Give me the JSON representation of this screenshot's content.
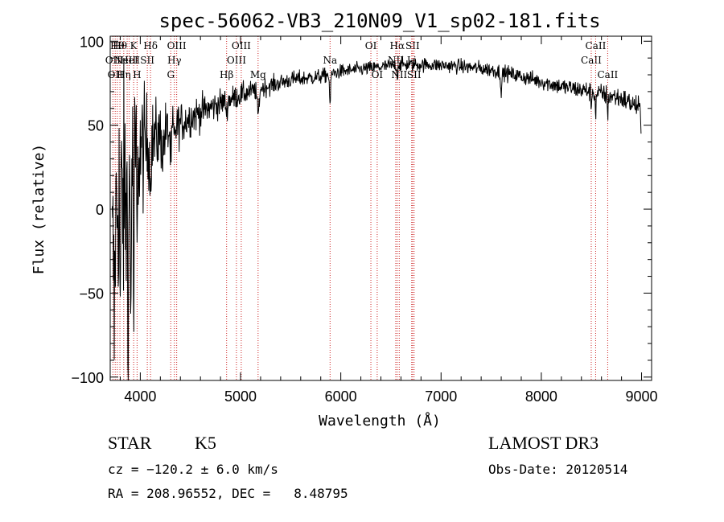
{
  "chart_data": {
    "type": "line",
    "title": "spec-56062-VB3_210N09_V1_sp02-181.fits",
    "xlabel": "Wavelength (Å)",
    "ylabel": "Flux (relative)",
    "xlim": [
      3700,
      9100
    ],
    "ylim": [
      -102,
      103
    ],
    "xticks": [
      4000,
      5000,
      6000,
      7000,
      8000,
      9000
    ],
    "yticks": [
      -100,
      -50,
      0,
      50,
      100
    ],
    "xtick_labels": [
      "4000",
      "5000",
      "6000",
      "7000",
      "8000",
      "9000"
    ],
    "ytick_labels": [
      "−100",
      "−50",
      "0",
      "50",
      "100"
    ],
    "continuum": [
      [
        3720,
        -30
      ],
      [
        3780,
        10
      ],
      [
        3830,
        5
      ],
      [
        3870,
        0
      ],
      [
        3900,
        20
      ],
      [
        3950,
        30
      ],
      [
        4000,
        35
      ],
      [
        4100,
        40
      ],
      [
        4200,
        44
      ],
      [
        4300,
        47
      ],
      [
        4500,
        55
      ],
      [
        4800,
        63
      ],
      [
        5000,
        68
      ],
      [
        5200,
        72
      ],
      [
        5500,
        77
      ],
      [
        5800,
        79
      ],
      [
        6000,
        82
      ],
      [
        6300,
        84
      ],
      [
        6600,
        86
      ],
      [
        6900,
        86
      ],
      [
        7200,
        85
      ],
      [
        7500,
        83
      ],
      [
        7800,
        79
      ],
      [
        8200,
        73
      ],
      [
        8500,
        70
      ],
      [
        8800,
        66
      ],
      [
        8990,
        60
      ]
    ],
    "noise_profile": [
      [
        3720,
        45
      ],
      [
        3850,
        55
      ],
      [
        3950,
        35
      ],
      [
        4100,
        18
      ],
      [
        4400,
        9
      ],
      [
        4800,
        6
      ],
      [
        5200,
        4
      ],
      [
        6000,
        3
      ],
      [
        7000,
        3
      ],
      [
        8000,
        3.5
      ],
      [
        9000,
        5
      ]
    ],
    "dips": [
      {
        "x": 3740,
        "depth": 55,
        "w": 6
      },
      {
        "x": 3800,
        "depth": 70,
        "w": 6
      },
      {
        "x": 3880,
        "depth": 110,
        "w": 5
      },
      {
        "x": 3905,
        "depth": 90,
        "w": 5
      },
      {
        "x": 3935,
        "depth": 95,
        "w": 5
      },
      {
        "x": 3970,
        "depth": 70,
        "w": 5
      },
      {
        "x": 4101,
        "depth": 30,
        "w": 6
      },
      {
        "x": 4226,
        "depth": 15,
        "w": 8
      },
      {
        "x": 4305,
        "depth": 18,
        "w": 10
      },
      {
        "x": 4340,
        "depth": 12,
        "w": 6
      },
      {
        "x": 4861,
        "depth": 8,
        "w": 8
      },
      {
        "x": 5175,
        "depth": 15,
        "w": 14
      },
      {
        "x": 5893,
        "depth": 18,
        "w": 8
      },
      {
        "x": 6563,
        "depth": 8,
        "w": 6
      },
      {
        "x": 7600,
        "depth": 10,
        "w": 10
      },
      {
        "x": 8498,
        "depth": 8,
        "w": 6
      },
      {
        "x": 8542,
        "depth": 14,
        "w": 6
      },
      {
        "x": 8662,
        "depth": 12,
        "w": 6
      }
    ],
    "drop_end": [
      8990,
      45
    ],
    "line_markers": [
      {
        "x": 3727,
        "label": "OII",
        "row": 1
      },
      {
        "x": 3750,
        "label": "OII",
        "row": 2
      },
      {
        "x": 3771,
        "label": "Hθ",
        "row": 0
      },
      {
        "x": 3797,
        "label": "Hθ",
        "row": 0
      },
      {
        "x": 3835,
        "label": "Hη",
        "row": 2
      },
      {
        "x": 3869,
        "label": "NeIII",
        "row": 1
      },
      {
        "x": 3889,
        "label": "HeI",
        "row": 1
      },
      {
        "x": 3934,
        "label": "K",
        "row": 0
      },
      {
        "x": 3968,
        "label": "H",
        "row": 2
      },
      {
        "x": 4070,
        "label": "SII",
        "row": 1
      },
      {
        "x": 4102,
        "label": "Hδ",
        "row": 0
      },
      {
        "x": 4304,
        "label": "G",
        "row": 2
      },
      {
        "x": 4340,
        "label": "Hγ",
        "row": 1
      },
      {
        "x": 4363,
        "label": "OIII",
        "row": 0
      },
      {
        "x": 4861,
        "label": "Hβ",
        "row": 2
      },
      {
        "x": 4959,
        "label": "OIII",
        "row": 1
      },
      {
        "x": 5007,
        "label": "OIII",
        "row": 0
      },
      {
        "x": 5175,
        "label": "Mg",
        "row": 2
      },
      {
        "x": 5893,
        "label": "Na",
        "row": 1
      },
      {
        "x": 6300,
        "label": "OI",
        "row": 0
      },
      {
        "x": 6363,
        "label": "OI",
        "row": 2
      },
      {
        "x": 6548,
        "label": "NII",
        "row": 1
      },
      {
        "x": 6563,
        "label": "Hα",
        "row": 0
      },
      {
        "x": 6583,
        "label": "NII",
        "row": 2
      },
      {
        "x": 6707,
        "label": "Li",
        "row": 1
      },
      {
        "x": 6716,
        "label": "SII",
        "row": 0
      },
      {
        "x": 6731,
        "label": "SII",
        "row": 2
      },
      {
        "x": 8498,
        "label": "CaII",
        "row": 1
      },
      {
        "x": 8542,
        "label": "CaII",
        "row": 0
      },
      {
        "x": 8662,
        "label": "CaII",
        "row": 2
      }
    ],
    "colors": {
      "spectrum": "#000000",
      "markers": "#cc2222",
      "axes": "#000000"
    }
  },
  "info": {
    "class": "STAR",
    "subclass": "K5",
    "survey": "LAMOST DR3",
    "cz": "cz = −120.2 ± 6.0 km/s",
    "obs_date": "Obs-Date: 20120514",
    "radec": "RA = 208.96552, DEC =   8.48795"
  }
}
